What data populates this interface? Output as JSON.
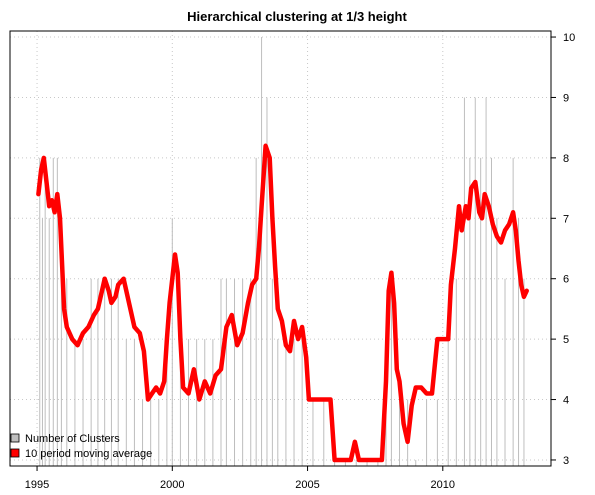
{
  "chart_data": {
    "type": "line",
    "title": "Hierarchical clustering at 1/3 height",
    "xlabel": "",
    "ylabel": "",
    "xlim": [
      1994.0,
      2014.0
    ],
    "ylim": [
      2.9,
      10.1
    ],
    "x_ticks": [
      1995,
      2000,
      2005,
      2010
    ],
    "y_ticks": [
      3,
      4,
      5,
      6,
      7,
      8,
      9,
      10
    ],
    "y_axis_side": "right",
    "grid": true,
    "legend": {
      "position": "bottom-left",
      "entries": [
        {
          "label": "Number of Clusters",
          "color": "#bebebe"
        },
        {
          "label": "10 period moving average",
          "color": "#ff0000"
        }
      ]
    },
    "series": [
      {
        "name": "Number of Clusters",
        "style": "spikes",
        "color": "#bebebe",
        "x": [
          1995.1,
          1995.2,
          1995.3,
          1995.45,
          1995.6,
          1995.75,
          1995.9,
          1996.1,
          1996.4,
          1996.7,
          1997.0,
          1997.25,
          1997.5,
          1997.75,
          1998.0,
          1998.3,
          1998.6,
          1998.9,
          1999.2,
          1999.5,
          1999.8,
          2000.0,
          2000.3,
          2000.6,
          2000.9,
          2001.2,
          2001.5,
          2001.8,
          2002.0,
          2002.3,
          2002.6,
          2002.9,
          2003.1,
          2003.3,
          2003.5,
          2003.7,
          2003.9,
          2004.2,
          2004.5,
          2004.8,
          2005.2,
          2005.6,
          2006.0,
          2006.4,
          2006.8,
          2007.2,
          2007.6,
          2007.9,
          2008.1,
          2008.4,
          2008.7,
          2009.0,
          2009.4,
          2009.8,
          2010.2,
          2010.5,
          2010.8,
          2011.0,
          2011.2,
          2011.4,
          2011.6,
          2011.8,
          2012.0,
          2012.3,
          2012.6,
          2012.8,
          2013.0
        ],
        "values": [
          8,
          7,
          8,
          7,
          8,
          8,
          7,
          6,
          5,
          5,
          6,
          6,
          6,
          6,
          6,
          5,
          5,
          4,
          4,
          4,
          5,
          7,
          5,
          5,
          5,
          5,
          5,
          6,
          6,
          6,
          6,
          6,
          8,
          10,
          9,
          6,
          5,
          5,
          5,
          5,
          4,
          4,
          3,
          3,
          3,
          3,
          3,
          4,
          6,
          4,
          4,
          3,
          4,
          4,
          5,
          6,
          9,
          8,
          9,
          8,
          9,
          8,
          7,
          6,
          8,
          7,
          6
        ]
      },
      {
        "name": "10 period moving average",
        "style": "line",
        "color": "#ff0000",
        "x": [
          1995.05,
          1995.15,
          1995.25,
          1995.35,
          1995.45,
          1995.55,
          1995.65,
          1995.75,
          1995.85,
          1996.0,
          1996.1,
          1996.3,
          1996.5,
          1996.7,
          1996.9,
          1997.1,
          1997.25,
          1997.4,
          1997.5,
          1997.65,
          1997.75,
          1997.9,
          1998.0,
          1998.2,
          1998.4,
          1998.6,
          1998.8,
          1998.95,
          1999.1,
          1999.25,
          1999.4,
          1999.55,
          1999.7,
          1999.8,
          1999.9,
          2000.0,
          2000.1,
          2000.2,
          2000.3,
          2000.4,
          2000.6,
          2000.8,
          2001.0,
          2001.2,
          2001.4,
          2001.6,
          2001.8,
          2002.0,
          2002.2,
          2002.4,
          2002.6,
          2002.8,
          2002.95,
          2003.1,
          2003.2,
          2003.3,
          2003.45,
          2003.6,
          2003.7,
          2003.8,
          2003.9,
          2004.05,
          2004.2,
          2004.35,
          2004.5,
          2004.65,
          2004.8,
          2004.95,
          2005.05,
          2005.3,
          2005.6,
          2005.85,
          2006.0,
          2006.3,
          2006.6,
          2006.75,
          2006.9,
          2007.05,
          2007.2,
          2007.5,
          2007.75,
          2007.9,
          2008.0,
          2008.1,
          2008.2,
          2008.3,
          2008.4,
          2008.55,
          2008.7,
          2008.85,
          2009.0,
          2009.2,
          2009.4,
          2009.6,
          2009.8,
          2010.0,
          2010.2,
          2010.3,
          2010.45,
          2010.6,
          2010.7,
          2010.85,
          2010.95,
          2011.05,
          2011.2,
          2011.35,
          2011.45,
          2011.55,
          2011.7,
          2011.85,
          2012.0,
          2012.15,
          2012.3,
          2012.45,
          2012.6,
          2012.7,
          2012.8,
          2012.9,
          2013.0,
          2013.1
        ],
        "values": [
          7.4,
          7.8,
          8.0,
          7.6,
          7.2,
          7.3,
          7.1,
          7.4,
          7.0,
          5.5,
          5.2,
          5.0,
          4.9,
          5.1,
          5.2,
          5.4,
          5.5,
          5.8,
          6.0,
          5.8,
          5.6,
          5.7,
          5.9,
          6.0,
          5.6,
          5.2,
          5.1,
          4.8,
          4.0,
          4.1,
          4.2,
          4.1,
          4.3,
          5.0,
          5.6,
          6.0,
          6.4,
          6.1,
          5.0,
          4.2,
          4.1,
          4.5,
          4.0,
          4.3,
          4.1,
          4.4,
          4.5,
          5.2,
          5.4,
          4.9,
          5.1,
          5.6,
          5.9,
          6.0,
          6.5,
          7.2,
          8.2,
          8.0,
          7.0,
          6.2,
          5.5,
          5.3,
          4.9,
          4.8,
          5.3,
          5.0,
          5.2,
          4.7,
          4.0,
          4.0,
          4.0,
          4.0,
          3.0,
          3.0,
          3.0,
          3.3,
          3.0,
          3.0,
          3.0,
          3.0,
          3.0,
          4.3,
          5.8,
          6.1,
          5.6,
          4.5,
          4.3,
          3.6,
          3.3,
          3.9,
          4.2,
          4.2,
          4.1,
          4.1,
          5.0,
          5.0,
          5.0,
          5.9,
          6.5,
          7.2,
          6.8,
          7.2,
          7.0,
          7.5,
          7.6,
          7.1,
          7.0,
          7.4,
          7.2,
          6.9,
          6.7,
          6.6,
          6.8,
          6.9,
          7.1,
          6.8,
          6.3,
          5.9,
          5.7,
          5.8
        ]
      }
    ]
  }
}
